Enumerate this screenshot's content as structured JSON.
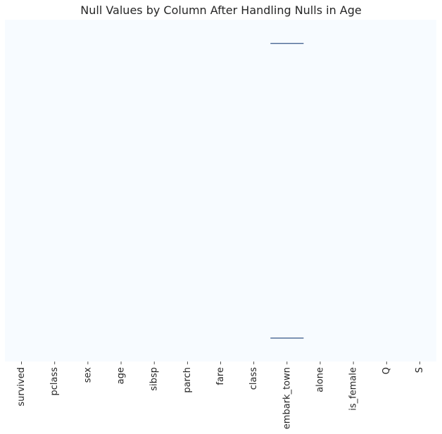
{
  "chart_data": {
    "type": "heatmap",
    "title": "Null Values by Column After Handling Nulls in Age",
    "xlabel": "",
    "ylabel": "",
    "columns": [
      "survived",
      "pclass",
      "sex",
      "age",
      "sibsp",
      "parch",
      "fare",
      "class",
      "embark_town",
      "alone",
      "is_female",
      "Q",
      "S"
    ],
    "rows_total": 891,
    "null_cells": [
      {
        "column": "embark_town",
        "rows": [
          61,
          829
        ]
      }
    ],
    "colorbar": false,
    "yticks_shown": false,
    "colors": {
      "not_null": "#f7fbff",
      "null": "#08306b"
    }
  }
}
